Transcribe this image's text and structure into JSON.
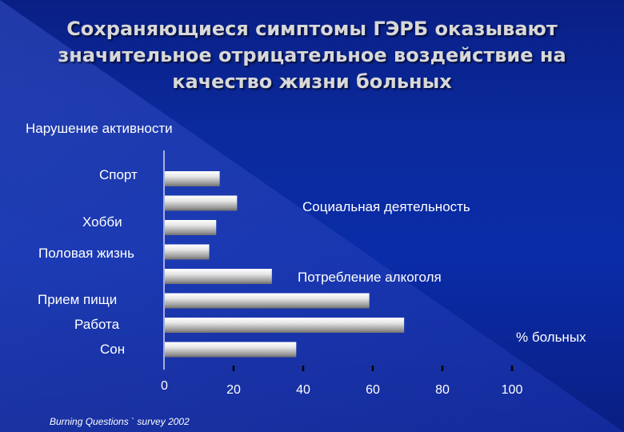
{
  "title": "Сохраняющиеся симптомы ГЭРБ оказывают значительное отрицательное воздействие на качество жизни больных",
  "source": "Burning Questions ` survey 2002",
  "colors": {
    "background": "#0b2a9c",
    "bar_light": "#ffffff",
    "bar_dark": "#8a8a8a",
    "text": "#ffffff"
  },
  "chart_data": {
    "type": "bar",
    "orientation": "horizontal",
    "title": "Нарушение активности",
    "xlabel": "% больных",
    "xlim": [
      0,
      100
    ],
    "xticks": [
      "0",
      "20",
      "40",
      "60",
      "80",
      "100"
    ],
    "grid": false,
    "categories": [
      "Спорт",
      "Социальная деятельность",
      "Хобби",
      "Половая жизнь",
      "Потребление алкоголя",
      "Прием пищи",
      "Работа",
      "Сон"
    ],
    "values": [
      16,
      21,
      15,
      13,
      31,
      59,
      69,
      38
    ]
  }
}
